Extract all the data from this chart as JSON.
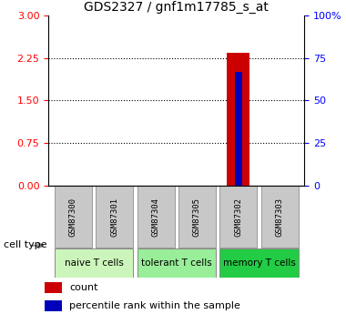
{
  "title": "GDS2327 / gnf1m17785_s_at",
  "samples": [
    "GSM87300",
    "GSM87301",
    "GSM87304",
    "GSM87305",
    "GSM87302",
    "GSM87303"
  ],
  "count_values": [
    0,
    0,
    0,
    0,
    2.35,
    0
  ],
  "percentile_values": [
    0,
    0,
    0,
    0,
    2.0,
    0
  ],
  "ylim_left": [
    0,
    3
  ],
  "ylim_right": [
    0,
    100
  ],
  "yticks_left": [
    0,
    0.75,
    1.5,
    2.25,
    3
  ],
  "yticks_right": [
    0,
    25,
    50,
    75,
    100
  ],
  "ytick_labels_right": [
    "0",
    "25",
    "50",
    "75",
    "100%"
  ],
  "groups": [
    {
      "label": "naive T cells",
      "indices": [
        0,
        1
      ],
      "color": "#ccf5bb"
    },
    {
      "label": "tolerant T cells",
      "indices": [
        2,
        3
      ],
      "color": "#99ee99"
    },
    {
      "label": "memory T cells",
      "indices": [
        4,
        5
      ],
      "color": "#22cc44"
    }
  ],
  "bar_color_count": "#CC0000",
  "bar_color_percentile": "#0000BB",
  "sample_box_color": "#C8C8C8",
  "title_fontsize": 10,
  "tick_fontsize": 8,
  "legend_count_label": "count",
  "legend_percentile_label": "percentile rank within the sample",
  "cell_type_label": "cell type",
  "group_colors": [
    "#ccf5bb",
    "#99ee99",
    "#22cc44"
  ]
}
